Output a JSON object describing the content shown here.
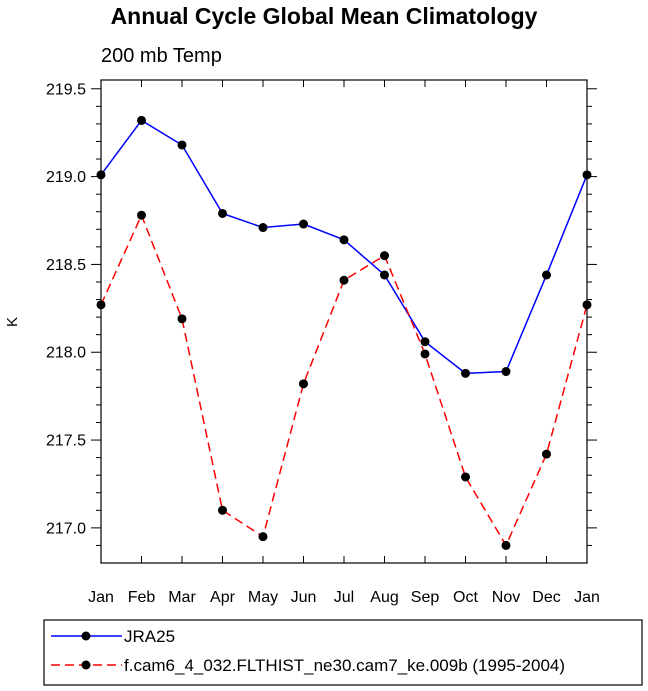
{
  "chart_data": {
    "type": "line",
    "title": "Annual Cycle Global Mean Climatology",
    "subtitle": "200 mb Temp",
    "xlabel": "",
    "ylabel": "K",
    "categories": [
      "Jan",
      "Feb",
      "Mar",
      "Apr",
      "May",
      "Jun",
      "Jul",
      "Aug",
      "Sep",
      "Oct",
      "Nov",
      "Dec",
      "Jan"
    ],
    "ylim": [
      216.8,
      219.55
    ],
    "yticks": [
      217.0,
      217.5,
      218.0,
      218.5,
      219.0,
      219.5
    ],
    "ytick_labels": [
      "217.0",
      "217.5",
      "218.0",
      "218.5",
      "219.0",
      "219.5"
    ],
    "legend_position": "bottom",
    "series": [
      {
        "name": "JRA25",
        "color": "#0000ff",
        "line_style": "solid",
        "marker": "filled-circle",
        "values": [
          219.01,
          219.32,
          219.18,
          218.79,
          218.71,
          218.73,
          218.64,
          218.44,
          218.06,
          217.88,
          217.89,
          218.44,
          219.01
        ]
      },
      {
        "name": "f.cam6_4_032.FLTHIST_ne30.cam7_ke.009b (1995-2004)",
        "color": "#ff0000",
        "line_style": "dashed",
        "marker": "filled-circle",
        "values": [
          218.27,
          218.78,
          218.19,
          217.1,
          216.95,
          217.82,
          218.41,
          218.55,
          217.99,
          217.29,
          216.9,
          217.42,
          218.27
        ]
      }
    ]
  }
}
